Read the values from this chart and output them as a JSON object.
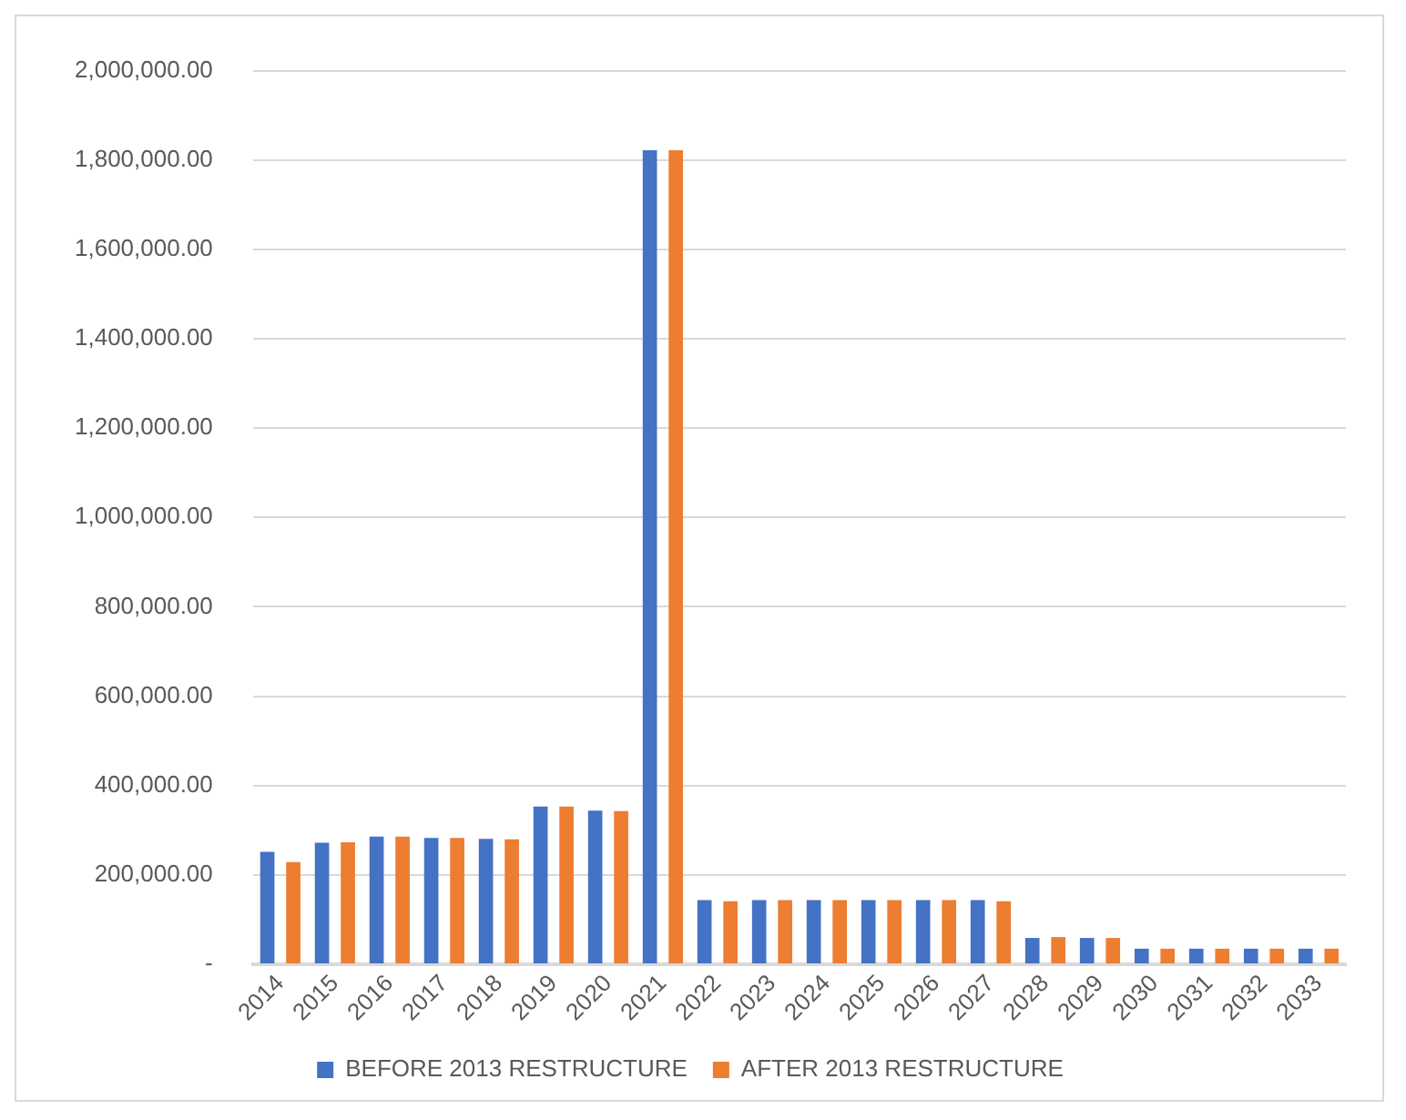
{
  "chart_data": {
    "type": "bar",
    "categories": [
      "2014",
      "2015",
      "2016",
      "2017",
      "2018",
      "2019",
      "2020",
      "2021",
      "2022",
      "2023",
      "2024",
      "2025",
      "2026",
      "2027",
      "2028",
      "2029",
      "2030",
      "2031",
      "2032",
      "2033"
    ],
    "series": [
      {
        "name": "BEFORE 2013 RESTRUCTURE",
        "color": "#4472c4",
        "values": [
          252000,
          272000,
          286000,
          283000,
          281000,
          353000,
          344000,
          1822000,
          144000,
          144000,
          144000,
          144000,
          144000,
          144000,
          59000,
          59000,
          35000,
          35000,
          35000,
          35000
        ]
      },
      {
        "name": "AFTER 2013 RESTRUCTURE",
        "color": "#ed7d31",
        "values": [
          229000,
          273000,
          286000,
          283000,
          280000,
          353000,
          343000,
          1822000,
          141000,
          144000,
          144000,
          144000,
          144000,
          141000,
          61000,
          59000,
          35000,
          35000,
          35000,
          35000
        ]
      }
    ],
    "ylim": [
      0,
      2000000
    ],
    "yticks": [
      {
        "value": 0,
        "label": "-"
      },
      {
        "value": 200000,
        "label": "200,000.00"
      },
      {
        "value": 400000,
        "label": "400,000.00"
      },
      {
        "value": 600000,
        "label": "600,000.00"
      },
      {
        "value": 800000,
        "label": "800,000.00"
      },
      {
        "value": 1000000,
        "label": "1,000,000.00"
      },
      {
        "value": 1200000,
        "label": "1,200,000.00"
      },
      {
        "value": 1400000,
        "label": "1,400,000.00"
      },
      {
        "value": 1600000,
        "label": "1,600,000.00"
      },
      {
        "value": 1800000,
        "label": "1,800,000.00"
      },
      {
        "value": 2000000,
        "label": "2,000,000.00"
      }
    ],
    "grid": "y",
    "legend": "bottom"
  }
}
